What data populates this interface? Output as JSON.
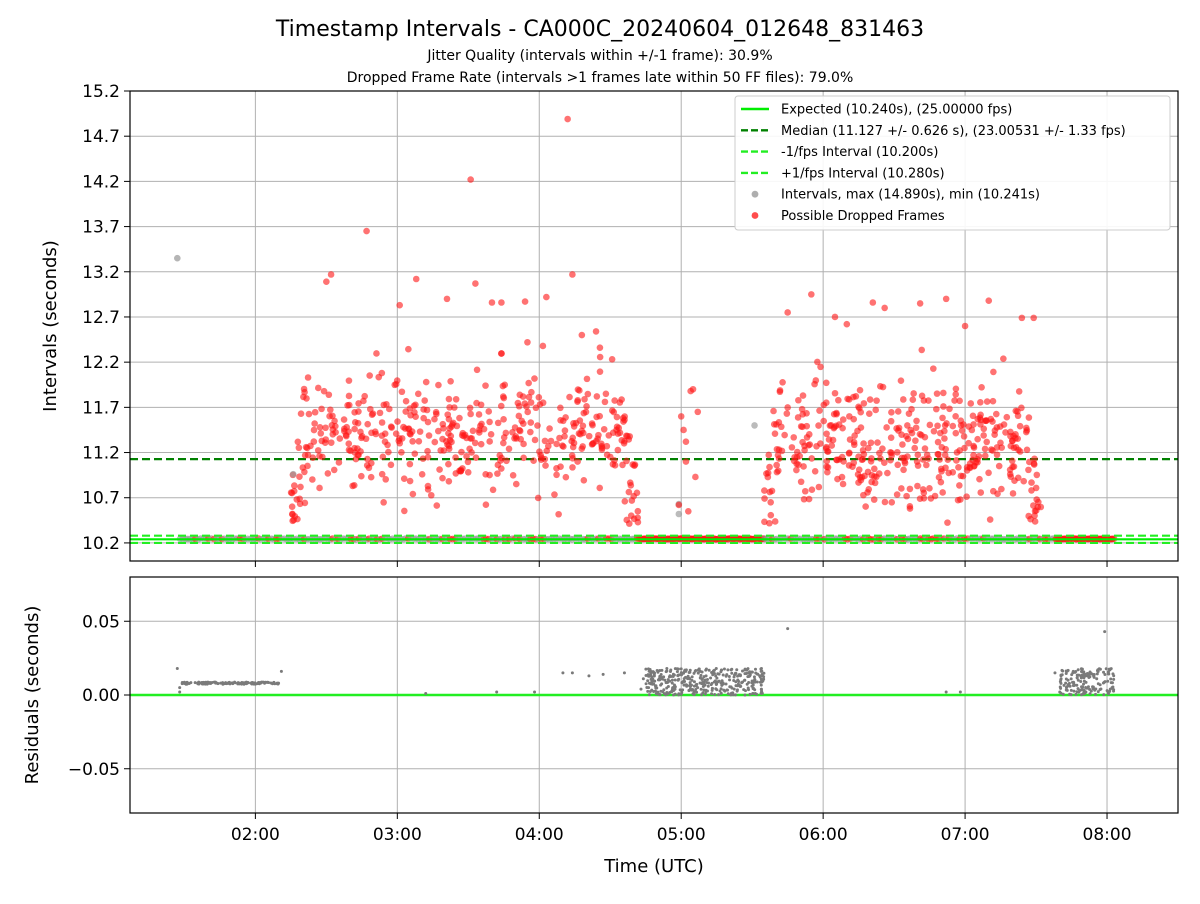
{
  "figure": {
    "title": "Timestamp Intervals - CA000C_20240604_012648_831463",
    "subtitle_1": "Jitter Quality (intervals within +/-1 frame): 30.9%",
    "subtitle_2": "Dropped Frame Rate (intervals >1 frames late within 50 FF files): 79.0%"
  },
  "chart_data": [
    {
      "type": "scatter",
      "name": "intervals",
      "ylabel": "Intervals (seconds)",
      "xlabel": "",
      "x_unit": "minutes since 00:00 UTC",
      "xlim": [
        67,
        510
      ],
      "ylim": [
        10.0,
        15.2
      ],
      "yticks": [
        "10.2",
        "10.7",
        "11.2",
        "11.7",
        "12.2",
        "12.7",
        "13.2",
        "13.7",
        "14.2",
        "14.7",
        "15.2"
      ],
      "grid": true,
      "lines": [
        {
          "label": "Expected (10.240s), (25.00000 fps)",
          "y": 10.24,
          "color": "#00ee00",
          "style": "solid"
        },
        {
          "label": "Median (11.127 +/- 0.626 s), (23.00531 +/- 1.33 fps)",
          "y": 11.127,
          "color": "#008000",
          "style": "dashed"
        },
        {
          "label": "-1/fps Interval (10.200s)",
          "y": 10.2,
          "color": "#22ee22",
          "style": "dashed"
        },
        {
          "label": "+1/fps Interval (10.280s)",
          "y": 10.28,
          "color": "#22ee22",
          "style": "dashed"
        }
      ],
      "scatter_labels": [
        {
          "label": "Intervals, max (14.890s), min (10.241s)",
          "color": "#9a9a9a"
        },
        {
          "label": "Possible Dropped Frames",
          "color": "#ff2020"
        }
      ],
      "legend_position": "top-right",
      "clusters": [
        {
          "x_range": [
            135,
            282
          ],
          "y_range": [
            10.8,
            12.0
          ],
          "count": 460
        },
        {
          "x_range": [
            334,
            452
          ],
          "y_range": [
            10.7,
            11.9
          ],
          "count": 420
        }
      ],
      "outliers": [
        [
          87,
          13.35
        ],
        [
          167,
          13.65
        ],
        [
          211,
          14.22
        ],
        [
          252,
          14.89
        ],
        [
          254,
          13.17
        ],
        [
          152,
          13.17
        ],
        [
          150,
          13.09
        ],
        [
          188,
          13.12
        ],
        [
          181,
          12.83
        ],
        [
          201,
          12.9
        ],
        [
          213,
          13.07
        ],
        [
          224,
          12.86
        ],
        [
          220,
          12.86
        ],
        [
          234,
          12.87
        ],
        [
          243,
          12.92
        ],
        [
          264,
          12.54
        ],
        [
          355,
          12.95
        ],
        [
          345,
          12.75
        ],
        [
          381,
          12.86
        ],
        [
          412,
          12.9
        ],
        [
          430,
          12.88
        ],
        [
          444,
          12.69
        ],
        [
          449,
          12.69
        ],
        [
          401,
          12.85
        ],
        [
          386,
          12.8
        ],
        [
          370,
          12.62
        ],
        [
          365,
          12.7
        ],
        [
          420,
          12.6
        ],
        [
          235,
          12.42
        ],
        [
          258,
          12.5
        ],
        [
          300,
          11.6
        ],
        [
          301,
          11.45
        ],
        [
          302,
          11.32
        ],
        [
          304,
          11.88
        ],
        [
          305,
          11.9
        ],
        [
          307,
          11.65
        ],
        [
          306,
          10.93
        ],
        [
          303,
          10.55
        ],
        [
          299,
          10.62
        ],
        [
          302,
          11.1
        ]
      ],
      "floor_points": {
        "y": 10.245,
        "segments": [
          [
            88,
            135
          ],
          [
            135,
            282
          ],
          [
            282,
            299
          ],
          [
            299,
            335
          ],
          [
            335,
            458
          ],
          [
            458,
            483
          ]
        ]
      }
    },
    {
      "type": "scatter",
      "name": "residuals",
      "ylabel": "Residuals (seconds)",
      "xlabel": "Time (UTC)",
      "xlim": [
        67,
        510
      ],
      "ylim": [
        -0.08,
        0.08
      ],
      "yticks": [
        "−0.05",
        "0.00",
        "0.05"
      ],
      "xticks": [
        "02:00",
        "03:00",
        "04:00",
        "05:00",
        "06:00",
        "07:00",
        "08:00"
      ],
      "xtick_values": [
        120,
        180,
        240,
        300,
        360,
        420,
        480
      ],
      "grid": true,
      "zero_line_color": "#22ee22",
      "bands": [
        {
          "x_range": [
            89,
            130
          ],
          "y": 0.008,
          "count": 120
        },
        {
          "x_range": [
            285,
            335
          ],
          "y_range": [
            0.0,
            0.018
          ],
          "count": 380
        },
        {
          "x_range": [
            460,
            483
          ],
          "y_range": [
            0.0,
            0.018
          ],
          "count": 160
        }
      ],
      "outliers": [
        [
          87,
          0.018
        ],
        [
          88,
          0.002
        ],
        [
          88,
          0.005
        ],
        [
          131,
          0.016
        ],
        [
          192,
          0.001
        ],
        [
          222,
          0.002
        ],
        [
          238,
          0.002
        ],
        [
          250,
          0.015
        ],
        [
          254,
          0.015
        ],
        [
          261,
          0.013
        ],
        [
          267,
          0.014
        ],
        [
          276,
          0.015
        ],
        [
          283,
          0.004
        ],
        [
          284,
          0.011
        ],
        [
          345,
          0.045
        ],
        [
          479,
          0.043
        ],
        [
          458,
          0.015
        ],
        [
          412,
          0.002
        ],
        [
          418,
          0.002
        ]
      ]
    }
  ]
}
